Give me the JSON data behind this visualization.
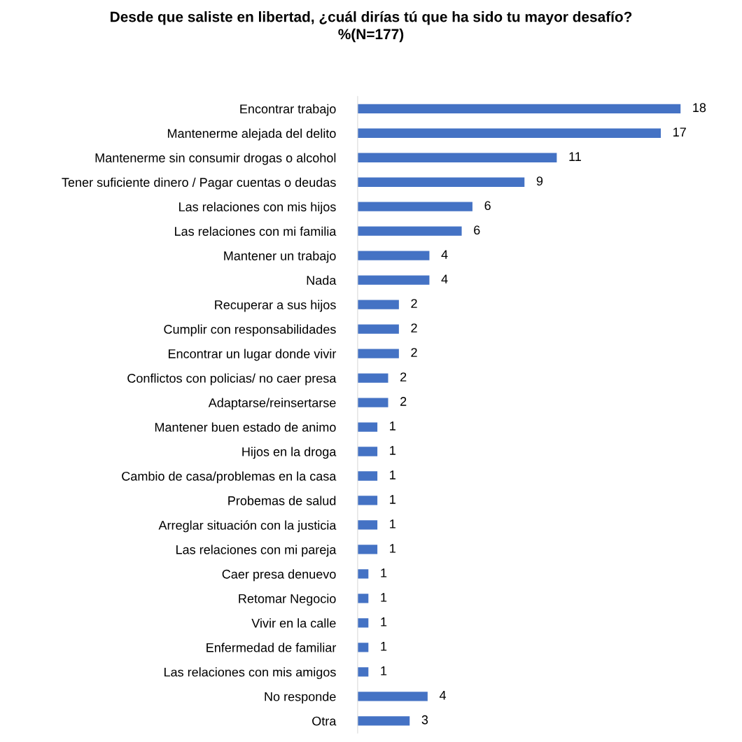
{
  "chart_data": {
    "type": "bar",
    "orientation": "horizontal",
    "title": "Desde que saliste en libertad, ¿cuál dirías tú que ha sido tu mayor desafío?\n%(N=177)",
    "categories": [
      "Encontrar trabajo",
      "Mantenerme alejada del delito",
      "Mantenerme sin consumir drogas o alcohol",
      "Tener suficiente dinero / Pagar cuentas o deudas",
      "Las relaciones con mis hijos",
      "Las relaciones con mi familia",
      "Mantener un trabajo",
      "Nada",
      "Recuperar a sus hijos",
      "Cumplir con responsabilidades",
      "Encontrar un lugar donde vivir",
      "Conflictos con policias/ no caer presa",
      "Adaptarse/reinsertarse",
      "Mantener buen estado de animo",
      "Hijos en la droga",
      "Cambio de casa/problemas en la casa",
      "Probemas de salud",
      "Arreglar situación con la justicia",
      "Las relaciones con mi pareja",
      "Caer presa denuevo",
      "Retomar Negocio",
      "Vivir en la calle",
      "Enfermedad de familiar",
      "Las relaciones con mis amigos",
      "No responde",
      "Otra"
    ],
    "values": [
      18,
      16.9,
      11.1,
      9.3,
      6.4,
      5.8,
      4.0,
      4.0,
      2.3,
      2.3,
      2.3,
      1.7,
      1.7,
      1.1,
      1.1,
      1.1,
      1.1,
      1.1,
      1.1,
      0.6,
      0.6,
      0.6,
      0.6,
      0.6,
      3.9,
      2.9
    ],
    "value_labels": [
      "18",
      "17",
      "11",
      "9",
      "6",
      "6",
      "4",
      "4",
      "2",
      "2",
      "2",
      "2",
      "2",
      "1",
      "1",
      "1",
      "1",
      "1",
      "1",
      "1",
      "1",
      "1",
      "1",
      "1",
      "4",
      "3"
    ],
    "color": "#4472c4",
    "grid": false,
    "legend": false,
    "tick_labels": "y"
  }
}
